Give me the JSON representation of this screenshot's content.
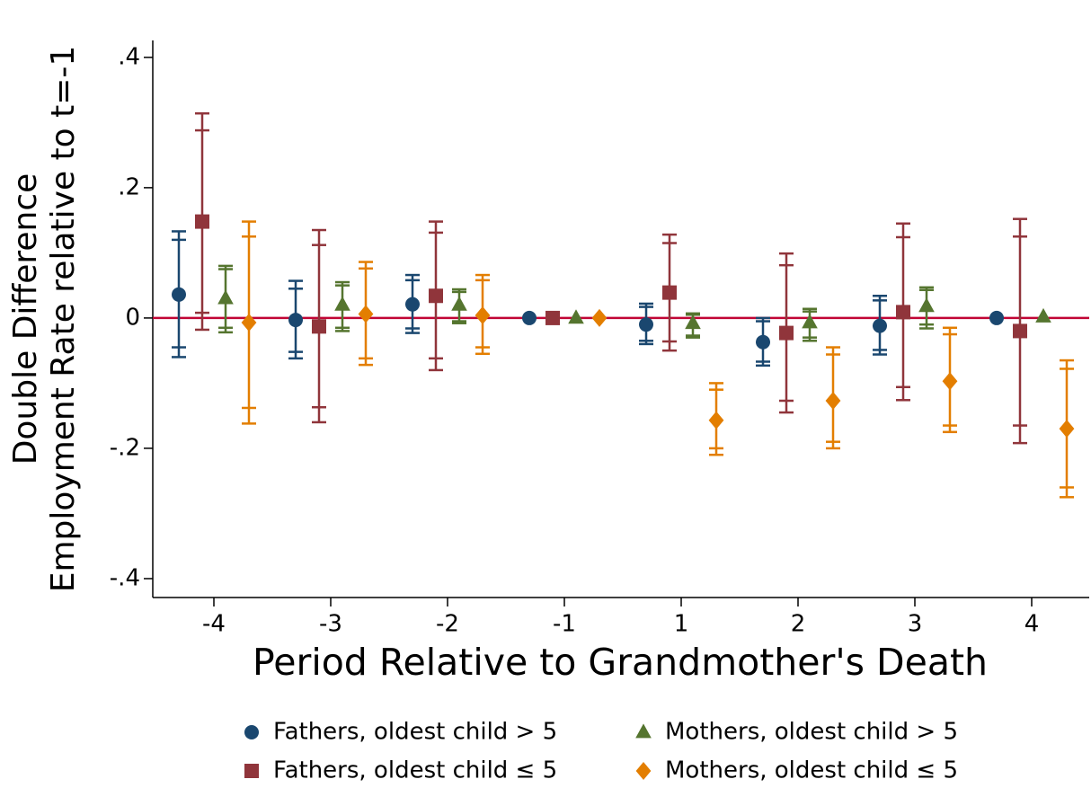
{
  "chart_data": {
    "type": "errorbar",
    "xlabel": "Period Relative to Grandmother's Death",
    "ylabel": [
      "Double Difference",
      "Employment Rate relative to t=-1"
    ],
    "categories": [
      "-4",
      "-3",
      "-2",
      "-1",
      "1",
      "2",
      "3",
      "4"
    ],
    "ylim": [
      -0.429,
      0.426
    ],
    "yticks": [
      {
        "value": 0.4,
        "label": ".4"
      },
      {
        "value": 0.2,
        "label": ".2"
      },
      0,
      {
        "value": -0.2,
        "label": "-.2"
      },
      {
        "value": -0.4,
        "label": "-.4"
      }
    ],
    "reference_line": {
      "value": 0,
      "color": "#c10534"
    },
    "grid": false,
    "legend": "bottom",
    "series": [
      {
        "name": "Fathers, oldest child > 5",
        "color": "#1a476f",
        "marker": "circle",
        "values": [
          0.036,
          -0.003,
          0.021,
          0,
          -0.01,
          -0.037,
          -0.012,
          0
        ],
        "ci95_low": [
          -0.06,
          -0.062,
          -0.023,
          null,
          -0.04,
          -0.073,
          -0.056,
          null
        ],
        "ci95_high": [
          0.133,
          0.057,
          0.066,
          null,
          0.022,
          0.0,
          0.034,
          null
        ],
        "ci90_low": [
          -0.045,
          -0.052,
          -0.016,
          null,
          -0.035,
          -0.067,
          -0.049,
          null
        ],
        "ci90_high": [
          0.12,
          0.045,
          0.058,
          null,
          0.017,
          -0.005,
          0.027,
          null
        ]
      },
      {
        "name": "Fathers, oldest child ≤ 5",
        "color": "#90353b",
        "marker": "square",
        "values": [
          0.148,
          -0.013,
          0.034,
          0,
          0.039,
          -0.023,
          0.009,
          -0.02
        ],
        "ci95_low": [
          -0.018,
          -0.16,
          -0.08,
          null,
          -0.05,
          -0.145,
          -0.126,
          -0.192
        ],
        "ci95_high": [
          0.314,
          0.135,
          0.148,
          null,
          0.128,
          0.099,
          0.145,
          0.152
        ],
        "ci90_low": [
          0.008,
          -0.137,
          -0.062,
          null,
          -0.036,
          -0.127,
          -0.106,
          -0.165
        ],
        "ci90_high": [
          0.288,
          0.112,
          0.131,
          null,
          0.115,
          0.081,
          0.124,
          0.125
        ]
      },
      {
        "name": "Mothers, oldest child > 5",
        "color": "#55752f",
        "marker": "triangle",
        "values": [
          0.03,
          0.02,
          0.02,
          0,
          -0.008,
          -0.007,
          0.018,
          0.002
        ],
        "ci95_low": [
          -0.022,
          -0.02,
          -0.008,
          null,
          -0.03,
          -0.035,
          -0.016,
          null
        ],
        "ci95_high": [
          0.08,
          0.055,
          0.044,
          null,
          0.007,
          0.014,
          0.047,
          null
        ],
        "ci90_low": [
          -0.015,
          -0.015,
          -0.005,
          null,
          -0.027,
          -0.03,
          -0.01,
          null
        ],
        "ci90_high": [
          0.075,
          0.05,
          0.04,
          null,
          0.005,
          0.01,
          0.043,
          null
        ]
      },
      {
        "name": "Mothers, oldest child ≤ 5",
        "color": "#e37e00",
        "marker": "diamond",
        "values": [
          -0.007,
          0.006,
          0.004,
          0,
          -0.157,
          -0.127,
          -0.097,
          -0.17
        ],
        "ci95_low": [
          -0.162,
          -0.072,
          -0.055,
          null,
          -0.21,
          -0.2,
          -0.175,
          -0.275
        ],
        "ci95_high": [
          0.148,
          0.086,
          0.066,
          null,
          -0.1,
          -0.045,
          -0.015,
          -0.065
        ],
        "ci90_low": [
          -0.138,
          -0.062,
          -0.045,
          null,
          -0.2,
          -0.19,
          -0.165,
          -0.26
        ],
        "ci90_high": [
          0.125,
          0.076,
          0.058,
          null,
          -0.11,
          -0.056,
          -0.025,
          -0.078
        ]
      }
    ]
  }
}
